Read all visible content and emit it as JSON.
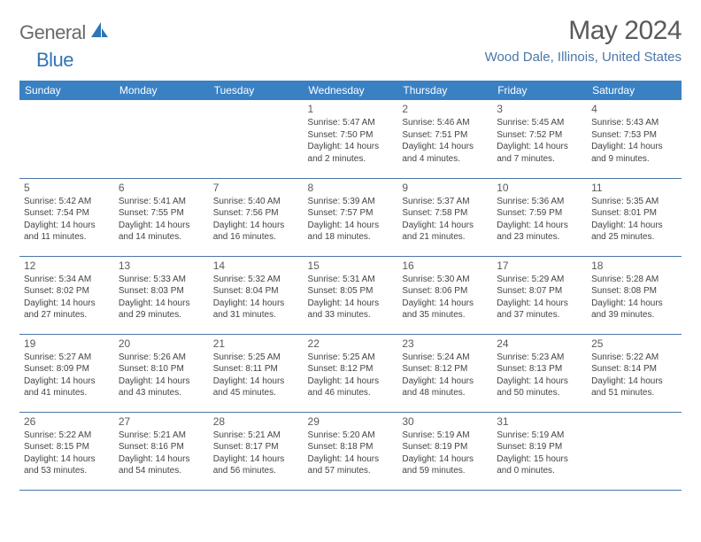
{
  "logo": {
    "text1": "General",
    "text2": "Blue"
  },
  "title": "May 2024",
  "location": "Wood Dale, Illinois, United States",
  "colors": {
    "header_bg": "#3a81c4",
    "header_text": "#ffffff",
    "location_text": "#4a76a8",
    "title_text": "#5a5a5a",
    "logo_gray": "#6a6a6a",
    "logo_blue": "#2f75b5",
    "cell_border": "#4a76a8",
    "body_text": "#444444"
  },
  "day_headers": [
    "Sunday",
    "Monday",
    "Tuesday",
    "Wednesday",
    "Thursday",
    "Friday",
    "Saturday"
  ],
  "weeks": [
    [
      {
        "num": "",
        "sunrise": "",
        "sunset": "",
        "daylight": ""
      },
      {
        "num": "",
        "sunrise": "",
        "sunset": "",
        "daylight": ""
      },
      {
        "num": "",
        "sunrise": "",
        "sunset": "",
        "daylight": ""
      },
      {
        "num": "1",
        "sunrise": "Sunrise: 5:47 AM",
        "sunset": "Sunset: 7:50 PM",
        "daylight": "Daylight: 14 hours and 2 minutes."
      },
      {
        "num": "2",
        "sunrise": "Sunrise: 5:46 AM",
        "sunset": "Sunset: 7:51 PM",
        "daylight": "Daylight: 14 hours and 4 minutes."
      },
      {
        "num": "3",
        "sunrise": "Sunrise: 5:45 AM",
        "sunset": "Sunset: 7:52 PM",
        "daylight": "Daylight: 14 hours and 7 minutes."
      },
      {
        "num": "4",
        "sunrise": "Sunrise: 5:43 AM",
        "sunset": "Sunset: 7:53 PM",
        "daylight": "Daylight: 14 hours and 9 minutes."
      }
    ],
    [
      {
        "num": "5",
        "sunrise": "Sunrise: 5:42 AM",
        "sunset": "Sunset: 7:54 PM",
        "daylight": "Daylight: 14 hours and 11 minutes."
      },
      {
        "num": "6",
        "sunrise": "Sunrise: 5:41 AM",
        "sunset": "Sunset: 7:55 PM",
        "daylight": "Daylight: 14 hours and 14 minutes."
      },
      {
        "num": "7",
        "sunrise": "Sunrise: 5:40 AM",
        "sunset": "Sunset: 7:56 PM",
        "daylight": "Daylight: 14 hours and 16 minutes."
      },
      {
        "num": "8",
        "sunrise": "Sunrise: 5:39 AM",
        "sunset": "Sunset: 7:57 PM",
        "daylight": "Daylight: 14 hours and 18 minutes."
      },
      {
        "num": "9",
        "sunrise": "Sunrise: 5:37 AM",
        "sunset": "Sunset: 7:58 PM",
        "daylight": "Daylight: 14 hours and 21 minutes."
      },
      {
        "num": "10",
        "sunrise": "Sunrise: 5:36 AM",
        "sunset": "Sunset: 7:59 PM",
        "daylight": "Daylight: 14 hours and 23 minutes."
      },
      {
        "num": "11",
        "sunrise": "Sunrise: 5:35 AM",
        "sunset": "Sunset: 8:01 PM",
        "daylight": "Daylight: 14 hours and 25 minutes."
      }
    ],
    [
      {
        "num": "12",
        "sunrise": "Sunrise: 5:34 AM",
        "sunset": "Sunset: 8:02 PM",
        "daylight": "Daylight: 14 hours and 27 minutes."
      },
      {
        "num": "13",
        "sunrise": "Sunrise: 5:33 AM",
        "sunset": "Sunset: 8:03 PM",
        "daylight": "Daylight: 14 hours and 29 minutes."
      },
      {
        "num": "14",
        "sunrise": "Sunrise: 5:32 AM",
        "sunset": "Sunset: 8:04 PM",
        "daylight": "Daylight: 14 hours and 31 minutes."
      },
      {
        "num": "15",
        "sunrise": "Sunrise: 5:31 AM",
        "sunset": "Sunset: 8:05 PM",
        "daylight": "Daylight: 14 hours and 33 minutes."
      },
      {
        "num": "16",
        "sunrise": "Sunrise: 5:30 AM",
        "sunset": "Sunset: 8:06 PM",
        "daylight": "Daylight: 14 hours and 35 minutes."
      },
      {
        "num": "17",
        "sunrise": "Sunrise: 5:29 AM",
        "sunset": "Sunset: 8:07 PM",
        "daylight": "Daylight: 14 hours and 37 minutes."
      },
      {
        "num": "18",
        "sunrise": "Sunrise: 5:28 AM",
        "sunset": "Sunset: 8:08 PM",
        "daylight": "Daylight: 14 hours and 39 minutes."
      }
    ],
    [
      {
        "num": "19",
        "sunrise": "Sunrise: 5:27 AM",
        "sunset": "Sunset: 8:09 PM",
        "daylight": "Daylight: 14 hours and 41 minutes."
      },
      {
        "num": "20",
        "sunrise": "Sunrise: 5:26 AM",
        "sunset": "Sunset: 8:10 PM",
        "daylight": "Daylight: 14 hours and 43 minutes."
      },
      {
        "num": "21",
        "sunrise": "Sunrise: 5:25 AM",
        "sunset": "Sunset: 8:11 PM",
        "daylight": "Daylight: 14 hours and 45 minutes."
      },
      {
        "num": "22",
        "sunrise": "Sunrise: 5:25 AM",
        "sunset": "Sunset: 8:12 PM",
        "daylight": "Daylight: 14 hours and 46 minutes."
      },
      {
        "num": "23",
        "sunrise": "Sunrise: 5:24 AM",
        "sunset": "Sunset: 8:12 PM",
        "daylight": "Daylight: 14 hours and 48 minutes."
      },
      {
        "num": "24",
        "sunrise": "Sunrise: 5:23 AM",
        "sunset": "Sunset: 8:13 PM",
        "daylight": "Daylight: 14 hours and 50 minutes."
      },
      {
        "num": "25",
        "sunrise": "Sunrise: 5:22 AM",
        "sunset": "Sunset: 8:14 PM",
        "daylight": "Daylight: 14 hours and 51 minutes."
      }
    ],
    [
      {
        "num": "26",
        "sunrise": "Sunrise: 5:22 AM",
        "sunset": "Sunset: 8:15 PM",
        "daylight": "Daylight: 14 hours and 53 minutes."
      },
      {
        "num": "27",
        "sunrise": "Sunrise: 5:21 AM",
        "sunset": "Sunset: 8:16 PM",
        "daylight": "Daylight: 14 hours and 54 minutes."
      },
      {
        "num": "28",
        "sunrise": "Sunrise: 5:21 AM",
        "sunset": "Sunset: 8:17 PM",
        "daylight": "Daylight: 14 hours and 56 minutes."
      },
      {
        "num": "29",
        "sunrise": "Sunrise: 5:20 AM",
        "sunset": "Sunset: 8:18 PM",
        "daylight": "Daylight: 14 hours and 57 minutes."
      },
      {
        "num": "30",
        "sunrise": "Sunrise: 5:19 AM",
        "sunset": "Sunset: 8:19 PM",
        "daylight": "Daylight: 14 hours and 59 minutes."
      },
      {
        "num": "31",
        "sunrise": "Sunrise: 5:19 AM",
        "sunset": "Sunset: 8:19 PM",
        "daylight": "Daylight: 15 hours and 0 minutes."
      },
      {
        "num": "",
        "sunrise": "",
        "sunset": "",
        "daylight": ""
      }
    ]
  ]
}
